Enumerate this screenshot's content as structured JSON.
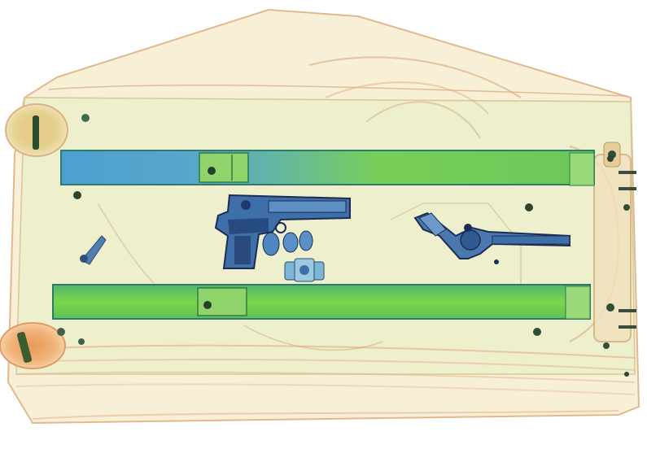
{
  "image": {
    "kind": "xray-baggage-scan",
    "background": "#ffffff",
    "palette": {
      "organic_orange": "#e3a36b",
      "organic_light": "#f2d7bd",
      "mixed_green": "#8fcf5a",
      "bar_green": "#6fd24a",
      "bar_edge": "#3b8f6a",
      "metal_blue": "#2f5f9e",
      "metal_dark": "#1f2f55",
      "pale_wash": "#f4ead4"
    },
    "objects": [
      {
        "name": "bag-outline",
        "material": "organic"
      },
      {
        "name": "trolley-bar-top",
        "material": "mixed"
      },
      {
        "name": "trolley-bar-bottom",
        "material": "mixed"
      },
      {
        "name": "pistol",
        "material": "metal"
      },
      {
        "name": "revolver",
        "material": "metal"
      },
      {
        "name": "keys",
        "material": "metal"
      },
      {
        "name": "small-device",
        "material": "mixed"
      },
      {
        "name": "wheel-top-left",
        "material": "organic"
      },
      {
        "name": "wheel-bottom-left",
        "material": "organic"
      },
      {
        "name": "handle-right",
        "material": "organic"
      }
    ]
  }
}
